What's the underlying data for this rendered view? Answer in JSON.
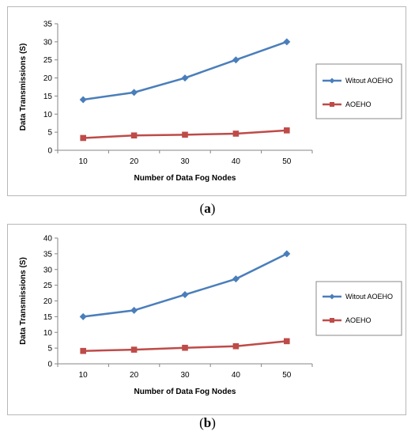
{
  "chart_data": [
    {
      "type": "line",
      "panel_label": "a",
      "x": [
        10,
        20,
        30,
        40,
        50
      ],
      "series": [
        {
          "name": "Witout AOEHO",
          "values": [
            14,
            16,
            20,
            25,
            30
          ],
          "color": "#4a7ebb",
          "marker": "diamond"
        },
        {
          "name": "AOEHO",
          "values": [
            3.4,
            4.1,
            4.3,
            4.6,
            5.5
          ],
          "color": "#be4b48",
          "marker": "square"
        }
      ],
      "xlabel": "Number of Data Fog Nodes",
      "ylabel": "Data Transmissions  (S)",
      "ylim": [
        0,
        35
      ],
      "yticks": [
        0,
        5,
        10,
        15,
        20,
        25,
        30,
        35
      ],
      "grid": false,
      "legend_position": "right"
    },
    {
      "type": "line",
      "panel_label": "b",
      "x": [
        10,
        20,
        30,
        40,
        50
      ],
      "series": [
        {
          "name": "Witout AOEHO",
          "values": [
            15,
            17,
            22,
            27,
            35
          ],
          "color": "#4a7ebb",
          "marker": "diamond"
        },
        {
          "name": "AOEHO",
          "values": [
            4.1,
            4.5,
            5.1,
            5.6,
            7.2
          ],
          "color": "#be4b48",
          "marker": "square"
        }
      ],
      "xlabel": "Number of Data Fog Nodes",
      "ylabel": "Data Transmissions  (S)",
      "ylim": [
        0,
        40
      ],
      "yticks": [
        0,
        5,
        10,
        15,
        20,
        25,
        30,
        35,
        40
      ],
      "grid": false,
      "legend_position": "right"
    }
  ]
}
